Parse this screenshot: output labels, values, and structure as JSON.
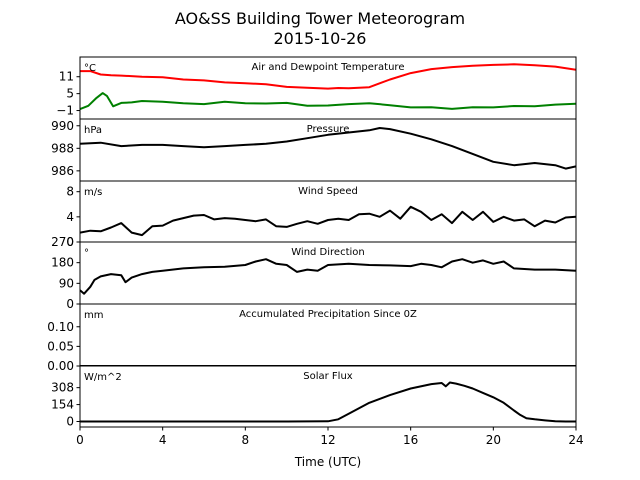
{
  "figure": {
    "title": "AO&SS Building Tower Meteorogram",
    "subtitle": "2015-10-26",
    "xlabel": "Time (UTC)"
  },
  "chart_data": {
    "type": "line",
    "x_ticks": [
      "0",
      "4",
      "8",
      "12",
      "16",
      "20",
      "24"
    ],
    "xlim": [
      0,
      24
    ],
    "panels": [
      {
        "title": "Air and Dewpoint Temperature",
        "unit": "°C",
        "ylim": [
          -4,
          18
        ],
        "yticks": [
          -1,
          5,
          11
        ],
        "ytick_labels": [
          "−1",
          "5",
          "11"
        ],
        "series": [
          {
            "color": "#ff0000",
            "x": [
              0,
              0.5,
              1,
              1.5,
              2,
              3,
              4,
              5,
              6,
              7,
              8,
              9,
              10,
              11,
              12,
              12.5,
              13,
              14,
              15,
              16,
              17,
              18,
              19,
              20,
              21,
              22,
              23,
              24
            ],
            "values": [
              13,
              13,
              11.8,
              11.5,
              11.4,
              11,
              10.8,
              10,
              9.7,
              9,
              8.7,
              8.3,
              7.4,
              7.1,
              6.8,
              7,
              6.9,
              7.3,
              10,
              12.3,
              13.7,
              14.4,
              14.9,
              15.2,
              15.4,
              15.1,
              14.6,
              13.5
            ]
          },
          {
            "color": "#008000",
            "x": [
              0,
              0.4,
              0.8,
              1.1,
              1.3,
              1.6,
              2,
              2.5,
              3,
              4,
              5,
              6,
              7,
              8,
              9,
              10,
              11,
              12,
              13,
              14,
              15,
              16,
              17,
              18,
              19,
              20,
              21,
              22,
              23,
              24
            ],
            "values": [
              -0.5,
              0.7,
              3.5,
              5.2,
              4.2,
              0.5,
              1.7,
              1.9,
              2.4,
              2.1,
              1.6,
              1.3,
              2.1,
              1.6,
              1.5,
              1.7,
              0.7,
              0.8,
              1.3,
              1.6,
              0.9,
              0.1,
              0.2,
              -0.4,
              0.2,
              0.1,
              0.6,
              0.5,
              1.1,
              1.4
            ]
          }
        ]
      },
      {
        "title": "Pressure",
        "unit": "hPa",
        "ylim": [
          985.1,
          990.6
        ],
        "yticks": [
          986,
          988,
          990
        ],
        "ytick_labels": [
          "986",
          "988",
          "990"
        ],
        "series": [
          {
            "color": "#000000",
            "x": [
              0,
              1,
              2,
              3,
              4,
              5,
              6,
              7,
              8,
              9,
              10,
              11,
              12,
              13,
              14,
              14.5,
              15,
              16,
              17,
              18,
              19,
              20,
              21,
              22,
              23,
              23.5,
              24
            ],
            "values": [
              988.4,
              988.5,
              988.2,
              988.3,
              988.3,
              988.2,
              988.1,
              988.2,
              988.3,
              988.4,
              988.6,
              988.9,
              989.2,
              989.4,
              989.6,
              989.8,
              989.7,
              989.3,
              988.8,
              988.2,
              987.5,
              986.8,
              986.5,
              986.7,
              986.5,
              986.2,
              986.4
            ]
          }
        ]
      },
      {
        "title": "Wind Speed",
        "unit": "m/s",
        "ylim": [
          0,
          9.7
        ],
        "yticks": [
          0,
          4,
          8
        ],
        "ytick_labels": [
          "0",
          "4",
          "8"
        ],
        "series": [
          {
            "color": "#000000",
            "x": [
              0,
              0.5,
              1,
              1.5,
              2,
              2.5,
              3,
              3.5,
              4,
              4.5,
              5,
              5.5,
              6,
              6.5,
              7,
              7.5,
              8,
              8.5,
              9,
              9.5,
              10,
              10.5,
              11,
              11.5,
              12,
              12.5,
              13,
              13.5,
              14,
              14.5,
              15,
              15.5,
              16,
              16.5,
              17,
              17.5,
              18,
              18.5,
              19,
              19.5,
              20,
              20.5,
              21,
              21.5,
              22,
              22.5,
              23,
              23.5,
              24
            ],
            "values": [
              1.5,
              1.8,
              1.7,
              2.3,
              3,
              1.5,
              1.1,
              2.5,
              2.6,
              3.4,
              3.8,
              4.2,
              4.3,
              3.6,
              3.8,
              3.7,
              3.5,
              3.3,
              3.6,
              2.5,
              2.4,
              2.9,
              3.3,
              2.9,
              3.5,
              3.7,
              3.5,
              4.4,
              4.5,
              4,
              5,
              3.7,
              5.6,
              4.8,
              3.5,
              4.4,
              3,
              4.8,
              3.5,
              4.8,
              3.2,
              4,
              3.4,
              3.6,
              2.5,
              3.4,
              3.1,
              3.9,
              4
            ]
          }
        ]
      },
      {
        "title": "Wind Direction",
        "unit": "°",
        "ylim": [
          0,
          270
        ],
        "yticks": [
          0,
          90,
          180,
          270
        ],
        "ytick_labels": [
          "0",
          "90",
          "180",
          "270"
        ],
        "series": [
          {
            "color": "#000000",
            "x": [
              0,
              0.2,
              0.5,
              0.7,
              1,
              1.5,
              2,
              2.2,
              2.5,
              3,
              3.5,
              4,
              5,
              6,
              7,
              8,
              8.5,
              9,
              9.5,
              10,
              10.5,
              11,
              11.5,
              12,
              13,
              14,
              15,
              16,
              16.5,
              17,
              17.5,
              18,
              18.5,
              19,
              19.5,
              20,
              20.5,
              21,
              22,
              23,
              24
            ],
            "values": [
              60,
              45,
              75,
              105,
              120,
              130,
              125,
              95,
              115,
              130,
              140,
              145,
              155,
              160,
              162,
              170,
              185,
              195,
              175,
              170,
              140,
              150,
              145,
              170,
              175,
              170,
              168,
              165,
              175,
              170,
              160,
              185,
              195,
              180,
              190,
              175,
              185,
              155,
              150,
              150,
              145
            ]
          }
        ]
      },
      {
        "title": "Accumulated Precipitation Since 0Z",
        "unit": "mm",
        "ylim": [
          0,
          0.158
        ],
        "yticks": [
          0,
          0.05,
          0.1
        ],
        "ytick_labels": [
          "0.00",
          "0.05",
          "0.10"
        ],
        "series": [
          {
            "color": "#000000",
            "x": [
              0,
              24
            ],
            "values": [
              0,
              0
            ]
          }
        ]
      },
      {
        "title": "Solar Flux",
        "unit": "W/m^2",
        "ylim": [
          -50,
          505
        ],
        "yticks": [
          0,
          154,
          308
        ],
        "ytick_labels": [
          "0",
          "154",
          "308"
        ],
        "series": [
          {
            "color": "#000000",
            "x": [
              0,
              5,
              10,
              12,
              12.5,
              13,
              13.5,
              14,
              15,
              16,
              17,
              17.5,
              17.7,
              17.9,
              18.2,
              18.6,
              19,
              19.5,
              20,
              20.5,
              21,
              21.3,
              21.6,
              22,
              22.5,
              23,
              23.5,
              24
            ],
            "values": [
              0,
              0,
              0,
              2,
              20,
              70,
              120,
              170,
              240,
              300,
              340,
              350,
              320,
              355,
              345,
              325,
              300,
              260,
              220,
              170,
              100,
              60,
              30,
              20,
              10,
              2,
              0,
              0
            ]
          }
        ]
      }
    ]
  }
}
